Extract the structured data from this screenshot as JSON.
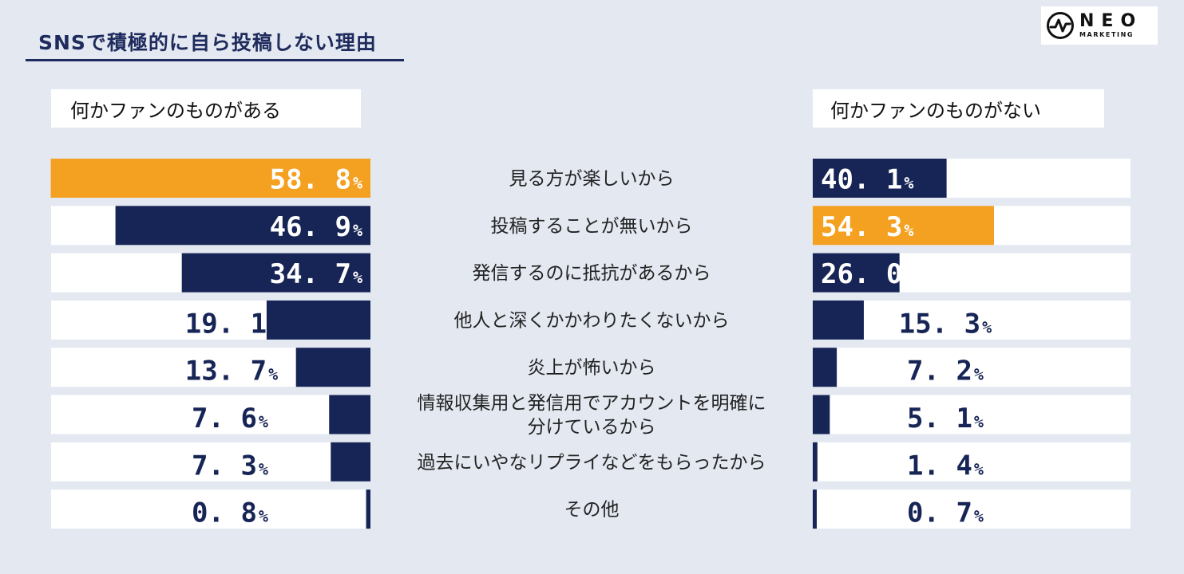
{
  "title": "SNSで積極的に自ら投稿しない理由",
  "logo": {
    "main": "NEO",
    "sub": "MARKETING"
  },
  "colors": {
    "highlight": "#f4a021",
    "navy": "#172556",
    "track": "#ffffff",
    "background": "#e3e8f1",
    "label": "#222222"
  },
  "chart_data": {
    "type": "bar",
    "orientation": "horizontal",
    "unit": "%",
    "xlim": [
      0,
      100
    ],
    "categories": [
      "見る方が楽しいから",
      "投稿することが無いから",
      "発信するのに抵抗があるから",
      "他人と深くかかわりたくないから",
      "炎上が怖いから",
      "情報収集用と発信用でアカウントを明確に\n分けているから",
      "過去にいやなリプライなどをもらったから",
      "その他"
    ],
    "series": [
      {
        "name": "何かファンのものがある",
        "values": [
          58.8,
          46.9,
          34.7,
          19.1,
          13.7,
          7.6,
          7.3,
          0.8
        ],
        "labels": [
          "58. 8",
          "46. 9",
          "34. 7",
          "19. 1",
          "13. 7",
          "7. 6",
          "7. 3",
          "0. 8"
        ],
        "highlight_index": 0
      },
      {
        "name": "何かファンのものがない",
        "values": [
          40.1,
          54.3,
          26.0,
          15.3,
          7.2,
          5.1,
          1.4,
          0.7
        ],
        "labels": [
          "40. 1",
          "54. 3",
          "26. 0",
          "15. 3",
          "7. 2",
          "5. 1",
          "1. 4",
          "0. 7"
        ],
        "highlight_index": 1
      }
    ]
  }
}
